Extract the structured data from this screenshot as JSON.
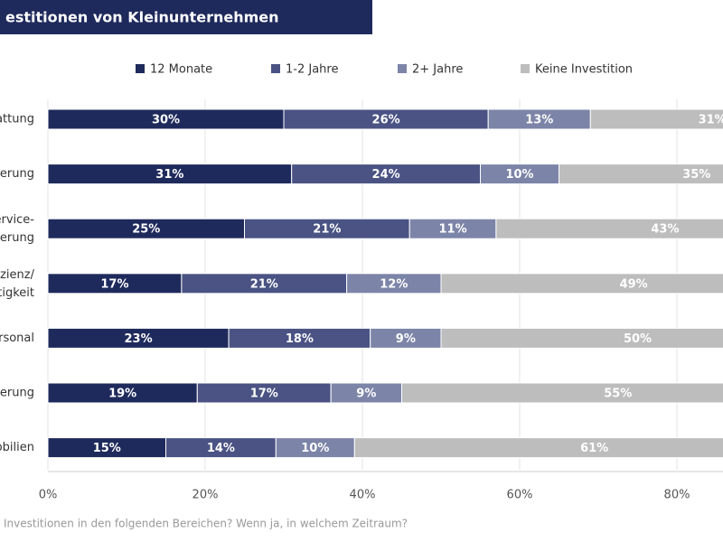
{
  "chart_data": {
    "type": "stacked_barh",
    "title": "estitionen von Kleinunternehmen",
    "footnote": "Investitionen in den folgenden Bereichen? Wenn ja, in welchem Zeitraum?",
    "categories": [
      "attung",
      "erung",
      "ervice-\nerung",
      "zienz/\ntigkeit",
      "rsonal",
      "erung",
      "obilien"
    ],
    "series": [
      {
        "name": "12 Monate",
        "color": "#1f2a5c",
        "values": [
          30,
          31,
          25,
          17,
          23,
          19,
          15
        ],
        "value_labels": [
          "30%",
          "31%",
          "25%",
          "17%",
          "23%",
          "19%",
          "15%"
        ]
      },
      {
        "name": "1-2 Jahre",
        "color": "#4a5383",
        "values": [
          26,
          24,
          21,
          21,
          18,
          17,
          14
        ],
        "value_labels": [
          "26%",
          "24%",
          "21%",
          "21%",
          "18%",
          "17%",
          "14%"
        ]
      },
      {
        "name": "2+ Jahre",
        "color": "#7c84a8",
        "values": [
          13,
          10,
          11,
          12,
          9,
          9,
          10
        ],
        "value_labels": [
          "13%",
          "10%",
          "11%",
          "12%",
          "9%",
          "9%",
          "10%"
        ]
      },
      {
        "name": "Keine Investition",
        "color": "#bdbdbd",
        "values": [
          31,
          35,
          43,
          49,
          50,
          55,
          61
        ],
        "value_labels": [
          "31%",
          "35%",
          "43%",
          "49%",
          "50%",
          "55%",
          "61%"
        ]
      }
    ],
    "xlim": [
      0,
      100
    ],
    "xticks": [
      {
        "value": 0,
        "label": "0%"
      },
      {
        "value": 20,
        "label": "20%"
      },
      {
        "value": 40,
        "label": "40%"
      },
      {
        "value": 60,
        "label": "60%"
      },
      {
        "value": 80,
        "label": "80%"
      }
    ],
    "grid": true,
    "title_color": "#1f2a5c"
  }
}
